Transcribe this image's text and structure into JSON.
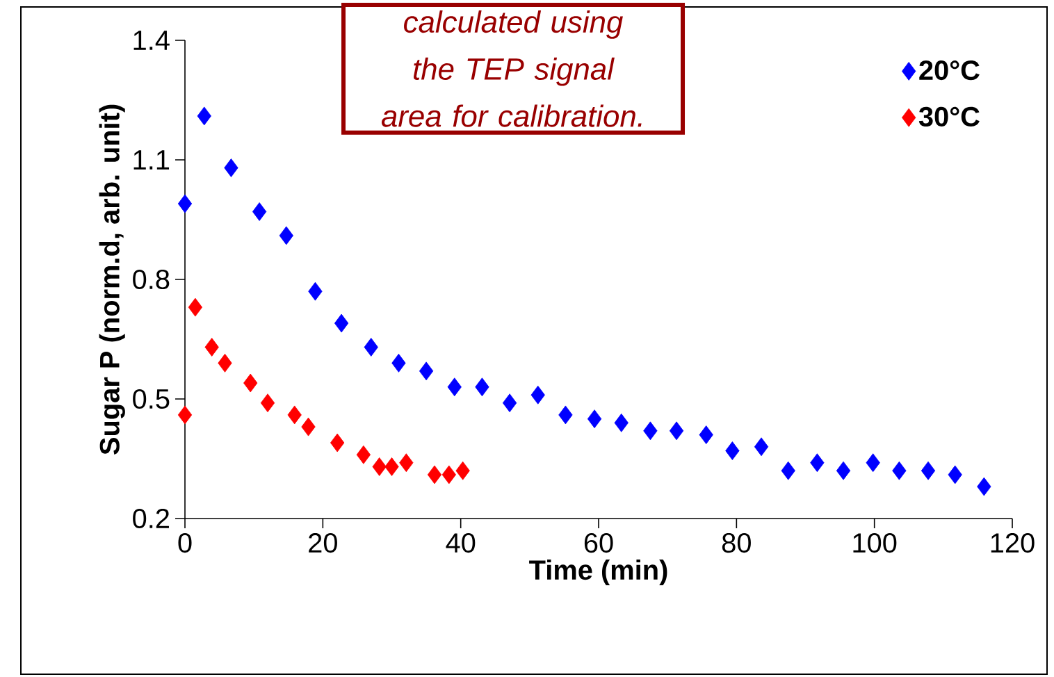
{
  "chart_data": {
    "type": "scatter",
    "xlabel": "Time (min)",
    "ylabel": "Sugar P (norm.d, arb. unit)",
    "annotations": [
      "calculated using the TEP signal area for calibration."
    ],
    "xlim": [
      0,
      120
    ],
    "ylim": [
      0.2,
      1.4
    ],
    "xticks": [
      0,
      20,
      40,
      60,
      80,
      100,
      120
    ],
    "yticks": [
      0.2,
      0.5,
      0.8,
      1.1,
      1.4
    ],
    "marker": "diamond",
    "legend": "top right",
    "series": [
      {
        "name": "20°C",
        "color": "#0000ff",
        "x": [
          0,
          2.8,
          6.7,
          10.8,
          14.7,
          18.9,
          22.7,
          27.0,
          31.0,
          35.0,
          39.1,
          43.1,
          47.1,
          51.2,
          55.2,
          59.4,
          63.3,
          67.5,
          71.3,
          75.6,
          79.4,
          83.6,
          87.5,
          91.7,
          95.5,
          99.8,
          103.6,
          107.8,
          111.7,
          115.9
        ],
        "values": [
          0.99,
          1.21,
          1.08,
          0.97,
          0.91,
          0.77,
          0.69,
          0.63,
          0.59,
          0.57,
          0.53,
          0.53,
          0.49,
          0.51,
          0.46,
          0.45,
          0.44,
          0.42,
          0.42,
          0.41,
          0.37,
          0.38,
          0.32,
          0.34,
          0.32,
          0.34,
          0.32,
          0.32,
          0.31,
          0.28
        ]
      },
      {
        "name": "30°C",
        "color": "#ff0000",
        "x": [
          0,
          1.5,
          3.9,
          5.8,
          9.5,
          12.0,
          15.9,
          17.9,
          22.1,
          25.9,
          28.2,
          30.0,
          32.1,
          36.2,
          38.3,
          40.3
        ],
        "values": [
          0.46,
          0.73,
          0.63,
          0.59,
          0.54,
          0.49,
          0.46,
          0.43,
          0.39,
          0.36,
          0.33,
          0.33,
          0.34,
          0.31,
          0.31,
          0.32
        ]
      }
    ]
  }
}
